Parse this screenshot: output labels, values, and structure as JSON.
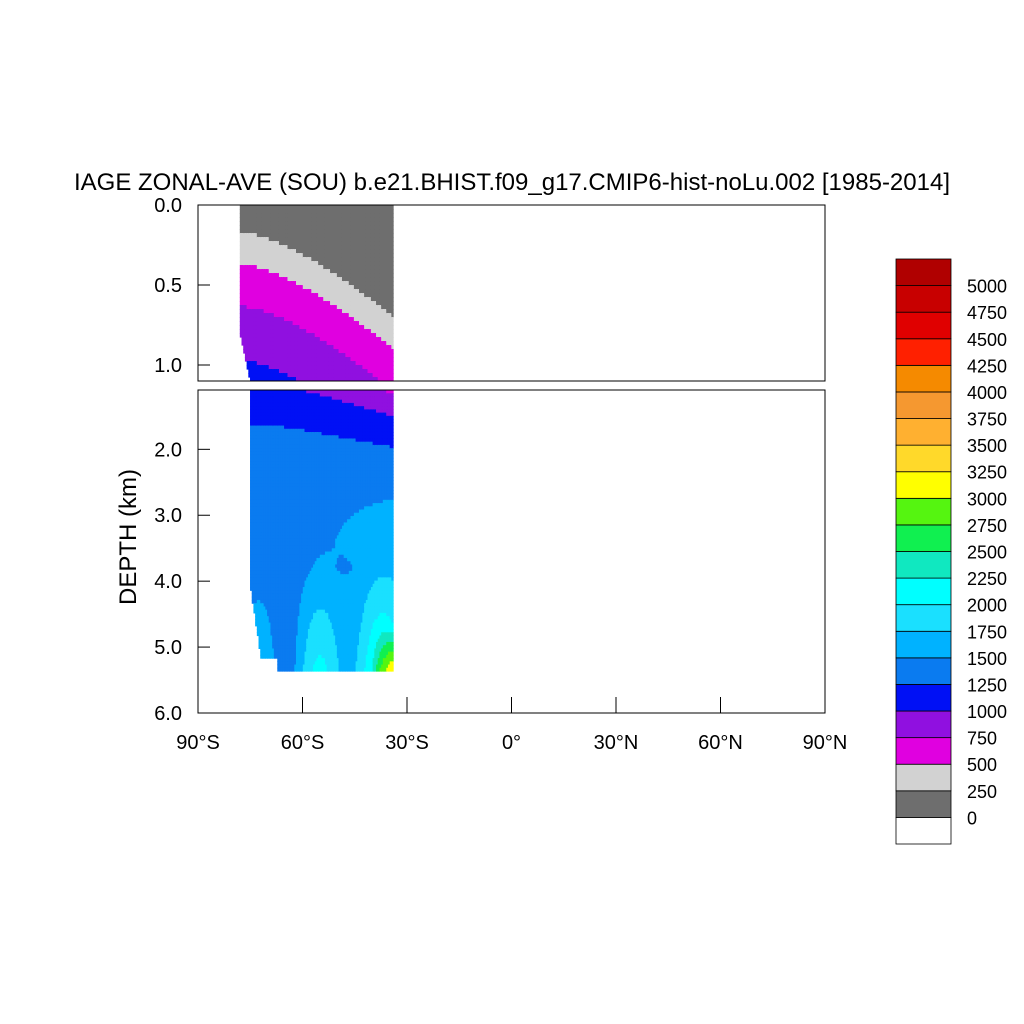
{
  "chart_data": {
    "type": "heatmap",
    "title": "IAGE ZONAL-AVE (SOU) b.e21.BHIST.f09_g17.CMIP6-hist-noLu.002 [1985-2014]",
    "ylabel": "DEPTH (km)",
    "xlabel": "",
    "x_ticks": [
      "90°S",
      "60°S",
      "30°S",
      "0°",
      "30°N",
      "60°N",
      "90°N"
    ],
    "x_tick_values": [
      -90,
      -60,
      -30,
      0,
      30,
      60,
      90
    ],
    "y_ticks_upper": [
      "0.0",
      "0.5",
      "1.0"
    ],
    "y_tick_values_upper": [
      0.0,
      0.5,
      1.0
    ],
    "y_ticks_lower": [
      "2.0",
      "3.0",
      "4.0",
      "5.0",
      "6.0"
    ],
    "y_tick_values_lower": [
      2.0,
      3.0,
      4.0,
      5.0,
      6.0
    ],
    "xlim": [
      -90,
      90
    ],
    "ylim_upper": [
      0.0,
      1.1
    ],
    "ylim_lower": [
      1.1,
      6.0
    ],
    "data_lat_range": [
      -78,
      -34
    ],
    "ocean_bottom_depth_km": 5.375,
    "legend_placement": "right",
    "colorbar_labels": [
      "5000",
      "4750",
      "4500",
      "4250",
      "4000",
      "3750",
      "3500",
      "3250",
      "3000",
      "2750",
      "2500",
      "2250",
      "2000",
      "1750",
      "1500",
      "1250",
      "1000",
      "750",
      "500",
      "250",
      "0"
    ],
    "levels": [
      {
        "min": 0,
        "max": 250,
        "color": "#ffffff"
      },
      {
        "min": 250,
        "max": 500,
        "color": "#6e6e6e"
      },
      {
        "min": 500,
        "max": 750,
        "color": "#d2d2d2"
      },
      {
        "min": 750,
        "max": 1000,
        "color": "#e000e0"
      },
      {
        "min": 1000,
        "max": 1250,
        "color": "#9010e0"
      },
      {
        "min": 1250,
        "max": 1500,
        "color": "#0010f5"
      },
      {
        "min": 1500,
        "max": 1750,
        "color": "#0a7bf0"
      },
      {
        "min": 1750,
        "max": 2000,
        "color": "#00b2ff"
      },
      {
        "min": 2000,
        "max": 2250,
        "color": "#1ae0ff"
      },
      {
        "min": 2250,
        "max": 2500,
        "color": "#00ffff"
      },
      {
        "min": 2500,
        "max": 2750,
        "color": "#10e8c0"
      },
      {
        "min": 2750,
        "max": 3000,
        "color": "#10f050"
      },
      {
        "min": 3000,
        "max": 3250,
        "color": "#55f510"
      },
      {
        "min": 3250,
        "max": 3500,
        "color": "#ffff00"
      },
      {
        "min": 3500,
        "max": 3750,
        "color": "#ffd92a"
      },
      {
        "min": 3750,
        "max": 4000,
        "color": "#ffb030"
      },
      {
        "min": 4000,
        "max": 4250,
        "color": "#f59830"
      },
      {
        "min": 4250,
        "max": 4500,
        "color": "#f58a00"
      },
      {
        "min": 4500,
        "max": 4750,
        "color": "#ff2000"
      },
      {
        "min": 4750,
        "max": 5000,
        "color": "#e00000"
      },
      {
        "min": 5000,
        "max": 5250,
        "color": "#c80000"
      },
      {
        "min": 5250,
        "max": 5500,
        "color": "#b00000"
      }
    ]
  }
}
